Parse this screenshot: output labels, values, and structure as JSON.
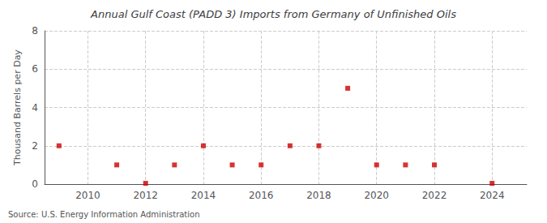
{
  "chart_data": {
    "type": "scatter",
    "title": "Annual Gulf Coast (PADD 3) Imports from Germany of Unfinished Oils",
    "ylabel": "Thousand Barrels per Day",
    "annotation": "Source: U.S. Energy Information Administration",
    "x": [
      2009,
      2011,
      2012,
      2013,
      2014,
      2015,
      2016,
      2017,
      2018,
      2019,
      2020,
      2021,
      2022,
      2024
    ],
    "values": [
      2,
      1,
      0.04,
      1,
      2,
      1,
      1,
      2,
      2,
      5,
      1,
      1,
      1,
      0.04
    ],
    "color": "#cc0000",
    "marker": "square",
    "xlim": [
      2008.5,
      2025.2
    ],
    "ylim": [
      0,
      8
    ],
    "xticks": [
      2010,
      2012,
      2014,
      2016,
      2018,
      2020,
      2022,
      2024
    ],
    "yticks": [
      0,
      2,
      4,
      6,
      8
    ],
    "grid": true
  }
}
